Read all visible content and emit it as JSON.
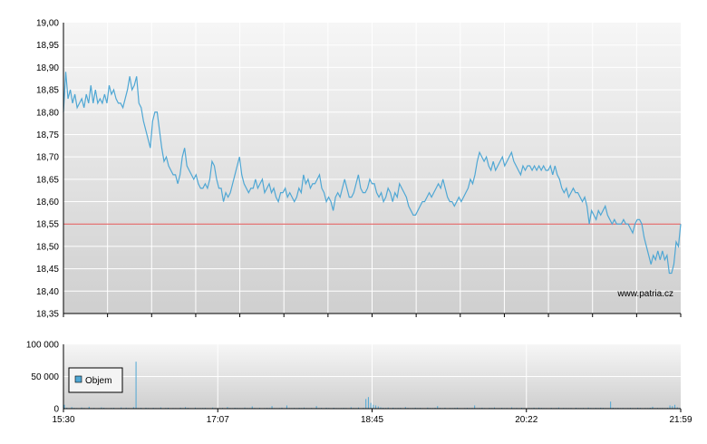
{
  "chart_data": [
    {
      "type": "line",
      "title": "",
      "xlabel": "",
      "ylabel": "",
      "ylim": [
        18.35,
        19.0
      ],
      "y_ticks": [
        "19,00",
        "18,95",
        "18,90",
        "18,85",
        "18,80",
        "18,75",
        "18,70",
        "18,65",
        "18,60",
        "18,55",
        "18,50",
        "18,45",
        "18,40",
        "18,35"
      ],
      "x_tick_labels": [
        "15:30",
        "17:07",
        "18:45",
        "20:22",
        "21:59"
      ],
      "reference_line": 18.55,
      "watermark": "www.patria.cz",
      "colors": {
        "line": "#4fa7d4",
        "reference": "#e05050",
        "plot_top": "#f6f6f6",
        "plot_bottom": "#cfcfcf"
      },
      "series": [
        {
          "values": [
            18.8,
            18.89,
            18.83,
            18.85,
            18.82,
            18.84,
            18.81,
            18.82,
            18.83,
            18.81,
            18.84,
            18.82,
            18.86,
            18.82,
            18.85,
            18.82,
            18.83,
            18.82,
            18.84,
            18.82,
            18.86,
            18.84,
            18.85,
            18.83,
            18.82,
            18.82,
            18.81,
            18.83,
            18.85,
            18.88,
            18.85,
            18.86,
            18.88,
            18.82,
            18.81,
            18.78,
            18.76,
            18.74,
            18.72,
            18.78,
            18.8,
            18.8,
            18.76,
            18.72,
            18.69,
            18.7,
            18.68,
            18.67,
            18.66,
            18.66,
            18.64,
            18.66,
            18.7,
            18.72,
            18.68,
            18.67,
            18.66,
            18.65,
            18.66,
            18.64,
            18.63,
            18.63,
            18.64,
            18.63,
            18.65,
            18.69,
            18.68,
            18.65,
            18.63,
            18.63,
            18.6,
            18.62,
            18.61,
            18.62,
            18.64,
            18.66,
            18.68,
            18.7,
            18.66,
            18.64,
            18.63,
            18.62,
            18.63,
            18.63,
            18.65,
            18.63,
            18.64,
            18.65,
            18.62,
            18.63,
            18.64,
            18.62,
            18.63,
            18.61,
            18.6,
            18.62,
            18.62,
            18.63,
            18.61,
            18.62,
            18.61,
            18.6,
            18.61,
            18.63,
            18.62,
            18.66,
            18.64,
            18.65,
            18.63,
            18.64,
            18.64,
            18.65,
            18.66,
            18.63,
            18.62,
            18.6,
            18.61,
            18.6,
            18.58,
            18.61,
            18.62,
            18.61,
            18.63,
            18.65,
            18.63,
            18.61,
            18.61,
            18.62,
            18.64,
            18.66,
            18.63,
            18.62,
            18.62,
            18.63,
            18.65,
            18.64,
            18.64,
            18.62,
            18.61,
            18.62,
            18.6,
            18.61,
            18.63,
            18.62,
            18.6,
            18.62,
            18.61,
            18.64,
            18.63,
            18.62,
            18.61,
            18.59,
            18.58,
            18.57,
            18.57,
            18.58,
            18.59,
            18.6,
            18.6,
            18.61,
            18.62,
            18.61,
            18.62,
            18.63,
            18.64,
            18.63,
            18.65,
            18.63,
            18.61,
            18.6,
            18.6,
            18.59,
            18.6,
            18.61,
            18.6,
            18.61,
            18.62,
            18.63,
            18.65,
            18.64,
            18.66,
            18.69,
            18.71,
            18.7,
            18.69,
            18.7,
            18.68,
            18.67,
            18.69,
            18.67,
            18.68,
            18.69,
            18.7,
            18.68,
            18.69,
            18.7,
            18.71,
            18.69,
            18.68,
            18.67,
            18.66,
            18.68,
            18.67,
            18.68,
            18.68,
            18.67,
            18.68,
            18.67,
            18.68,
            18.67,
            18.68,
            18.67,
            18.67,
            18.68,
            18.66,
            18.68,
            18.66,
            18.65,
            18.63,
            18.62,
            18.63,
            18.61,
            18.62,
            18.63,
            18.62,
            18.62,
            18.61,
            18.6,
            18.61,
            18.59,
            18.55,
            18.58,
            18.57,
            18.56,
            18.58,
            18.57,
            18.58,
            18.59,
            18.57,
            18.56,
            18.55,
            18.56,
            18.55,
            18.55,
            18.55,
            18.56,
            18.55,
            18.55,
            18.54,
            18.53,
            18.55,
            18.56,
            18.56,
            18.55,
            18.52,
            18.5,
            18.48,
            18.46,
            18.48,
            18.47,
            18.49,
            18.47,
            18.49,
            18.47,
            18.48,
            18.44,
            18.44,
            18.46,
            18.51,
            18.5,
            18.55
          ]
        }
      ]
    },
    {
      "type": "bar",
      "title": "",
      "xlabel": "",
      "ylabel": "",
      "ylim": [
        0,
        100000
      ],
      "y_ticks": [
        "100 000",
        "50 000",
        "0"
      ],
      "x_tick_labels": [
        "15:30",
        "17:07",
        "18:45",
        "20:22",
        "21:59"
      ],
      "legend": {
        "label": "Objem",
        "placement": "left"
      },
      "colors": {
        "bar": "#4fa7d4",
        "plot_top": "#f6f6f6",
        "plot_bottom": "#cfcfcf"
      },
      "series": [
        {
          "name": "Objem",
          "values": [
            6000,
            1500,
            800,
            2500,
            1200,
            900,
            600,
            1800,
            1100,
            500,
            3000,
            800,
            1200,
            700,
            900,
            2000,
            1400,
            800,
            550,
            1100,
            1300,
            700,
            800,
            1900,
            900,
            1600,
            1000,
            700,
            2300,
            73000,
            900,
            1200,
            600,
            1500,
            1000,
            750,
            1300,
            900,
            800,
            1900,
            600,
            1100,
            1400,
            700,
            1000,
            850,
            600,
            1500,
            900,
            2300,
            1200,
            800,
            700,
            1600,
            900,
            1000,
            1100,
            1300,
            800,
            600,
            1700,
            1000,
            900,
            900,
            1200,
            700,
            2500,
            1000,
            800,
            1400,
            1100,
            900,
            800,
            1700,
            1000,
            900,
            3500,
            1100,
            800,
            1300,
            600,
            1000,
            1200,
            1000,
            4000,
            900,
            800,
            1000,
            1600,
            700,
            5000,
            1000,
            900,
            1200,
            800,
            1300,
            1000,
            1700,
            900,
            800,
            1100,
            700,
            4000,
            900,
            1200,
            800,
            1500,
            1100,
            600,
            1400,
            900,
            800,
            1000,
            1300,
            1100,
            600,
            2200,
            1000,
            800,
            1700,
            700,
            1300,
            15000,
            18000,
            9000,
            6000,
            5000,
            3500,
            2000,
            1400,
            1100,
            1800,
            800,
            1500,
            900,
            1100,
            1300,
            700,
            2400,
            1100,
            800,
            900,
            1500,
            1000,
            1200,
            800,
            600,
            1700,
            1000,
            900,
            1300,
            4000,
            1100,
            800,
            1500,
            700,
            1000,
            900,
            1200,
            1600,
            800,
            700,
            1000,
            1300,
            900,
            1100,
            5000,
            800,
            1000,
            1500,
            900,
            700,
            1200,
            1000,
            1800,
            700,
            800,
            1300,
            900,
            1100,
            700,
            2000,
            900,
            1200,
            800,
            1400,
            1000,
            700,
            1100,
            900,
            1500,
            800,
            1600,
            1200,
            1000,
            900,
            700,
            1300,
            900,
            1000,
            1800,
            800,
            1200,
            1000,
            900,
            1100,
            700,
            1400,
            900,
            1000,
            1200,
            800,
            1700,
            1100,
            900,
            1300,
            1000,
            1500,
            1200,
            900,
            800,
            11000,
            1400,
            1000,
            1200,
            900,
            1100,
            800,
            1000,
            1300,
            1000,
            900,
            1500,
            1200,
            800,
            1100,
            1000,
            1400,
            3000,
            900,
            1200,
            1000,
            1100,
            900,
            1300,
            5000,
            4000,
            6000,
            2000,
            1000
          ]
        }
      ]
    }
  ]
}
